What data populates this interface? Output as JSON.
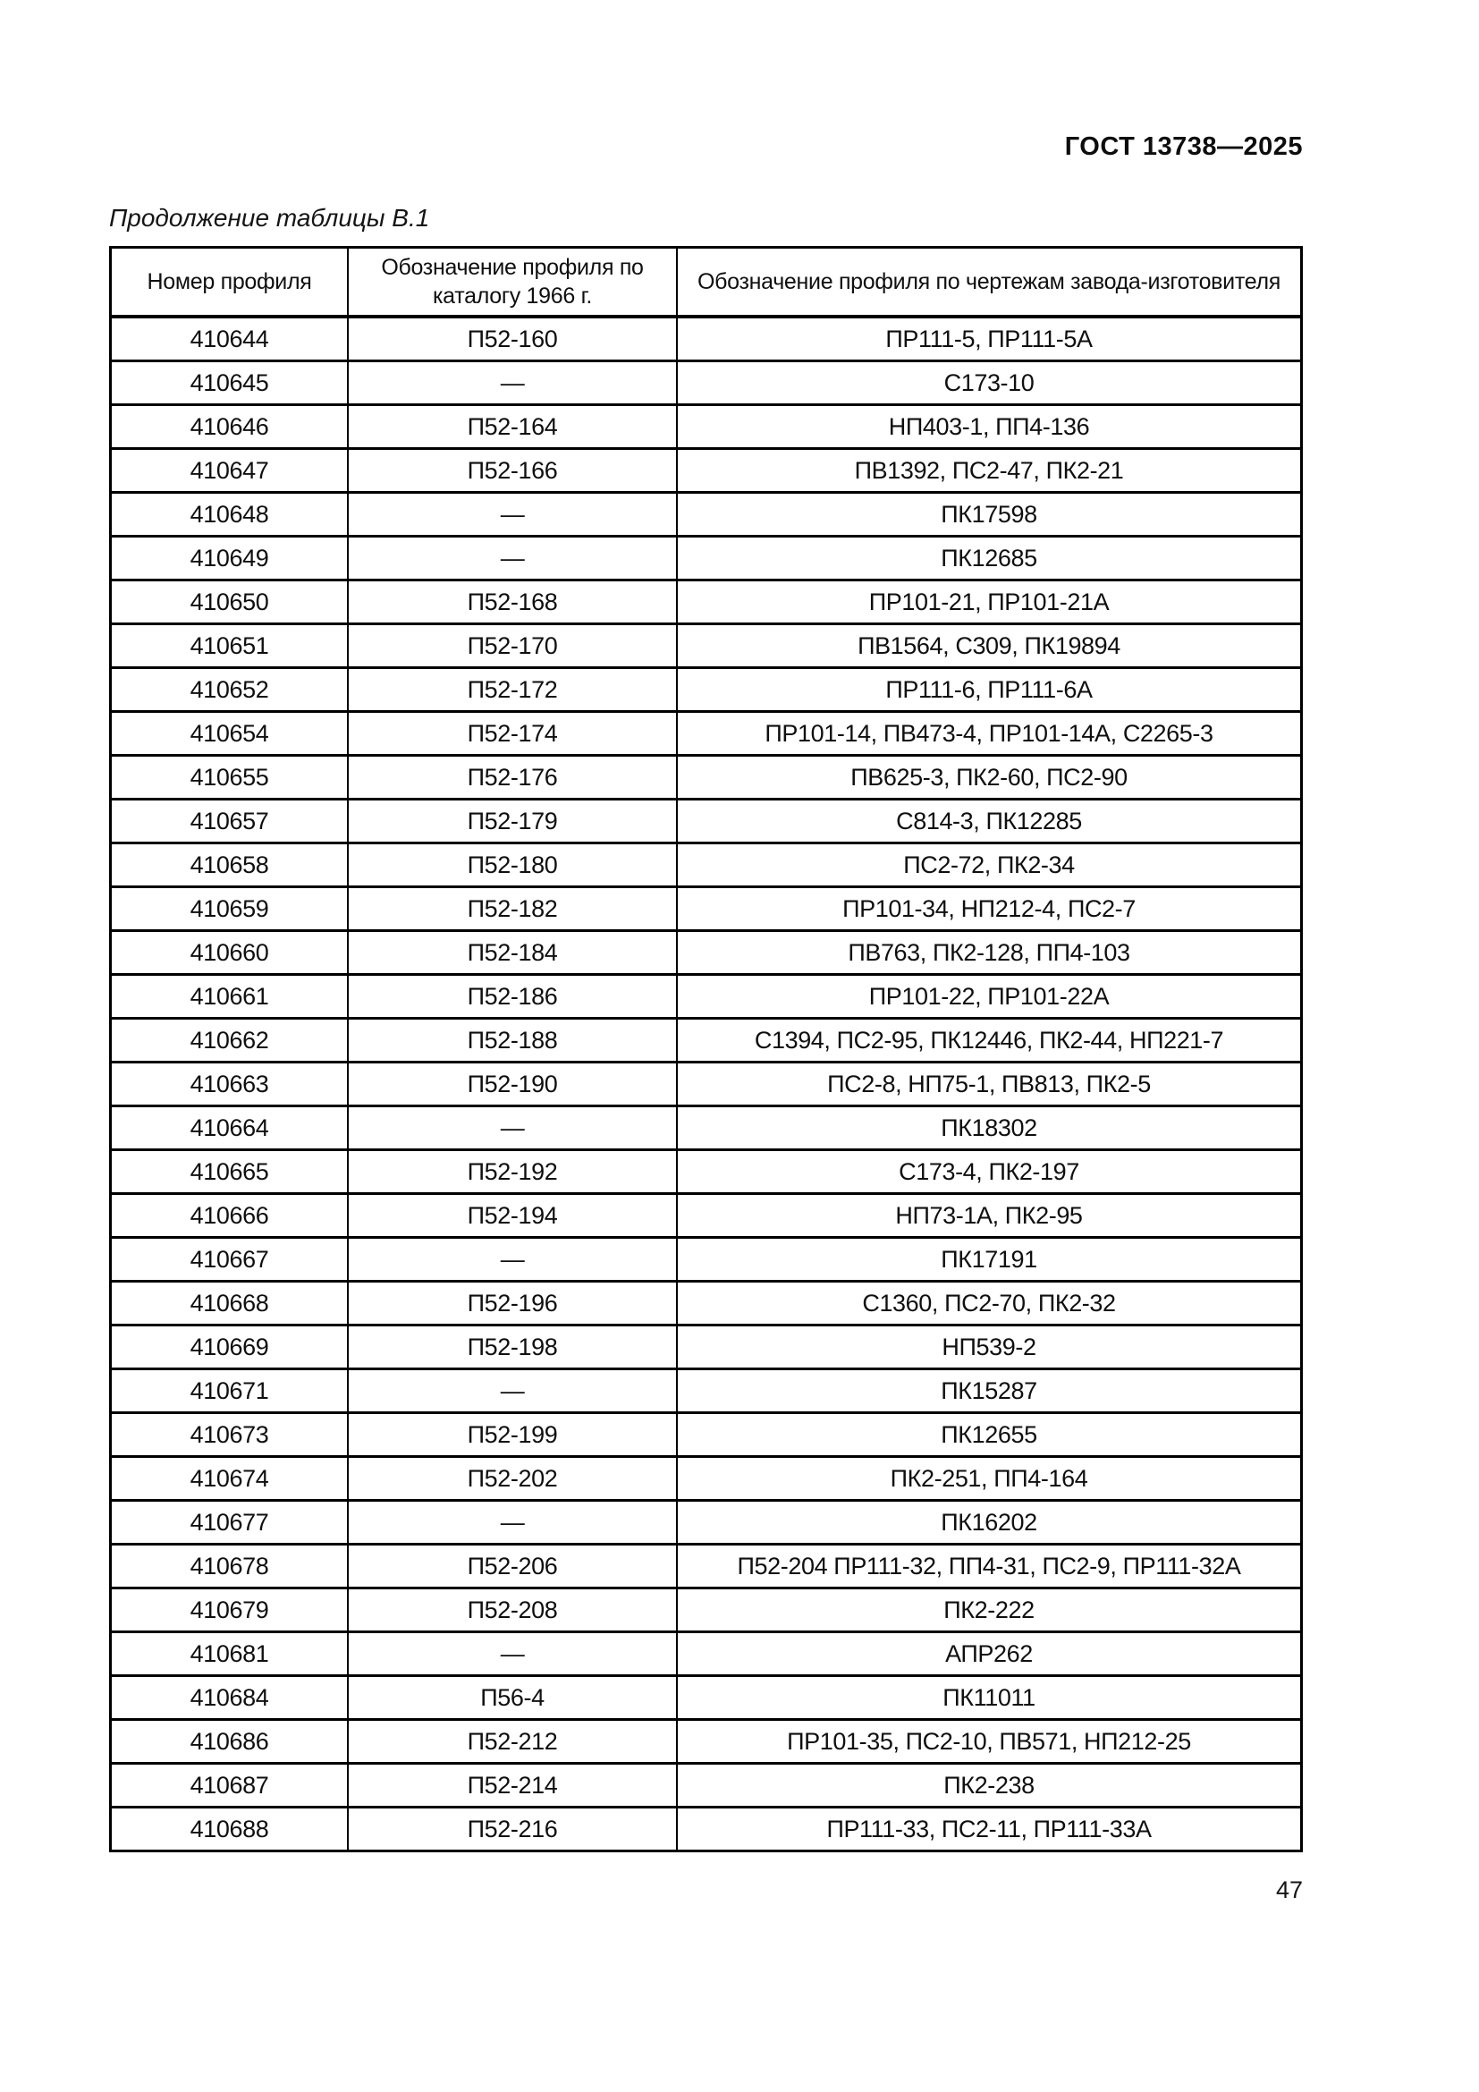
{
  "page": {
    "doc_header": "ГОСТ 13738—2025",
    "table_caption": "Продолжение таблицы В.1",
    "page_number": "47"
  },
  "table": {
    "columns": [
      {
        "label": "Номер профиля"
      },
      {
        "label": "Обозначение профиля по каталогу 1966 г."
      },
      {
        "label": "Обозначение профиля по чертежам завода-изготовителя"
      }
    ],
    "rows": [
      {
        "profile_number": "410644",
        "catalog_1966": "П52-160",
        "manufacturer": "ПР111-5, ПР111-5А"
      },
      {
        "profile_number": "410645",
        "catalog_1966": "—",
        "manufacturer": "С173-10"
      },
      {
        "profile_number": "410646",
        "catalog_1966": "П52-164",
        "manufacturer": "НП403-1, ПП4-136"
      },
      {
        "profile_number": "410647",
        "catalog_1966": "П52-166",
        "manufacturer": "ПВ1392, ПС2-47, ПК2-21"
      },
      {
        "profile_number": "410648",
        "catalog_1966": "—",
        "manufacturer": "ПК17598"
      },
      {
        "profile_number": "410649",
        "catalog_1966": "—",
        "manufacturer": "ПК12685"
      },
      {
        "profile_number": "410650",
        "catalog_1966": "П52-168",
        "manufacturer": "ПР101-21, ПР101-21А"
      },
      {
        "profile_number": "410651",
        "catalog_1966": "П52-170",
        "manufacturer": "ПВ1564, С309, ПК19894"
      },
      {
        "profile_number": "410652",
        "catalog_1966": "П52-172",
        "manufacturer": "ПР111-6, ПР111-6А"
      },
      {
        "profile_number": "410654",
        "catalog_1966": "П52-174",
        "manufacturer": "ПР101-14, ПВ473-4, ПР101-14А, С2265-3"
      },
      {
        "profile_number": "410655",
        "catalog_1966": "П52-176",
        "manufacturer": "ПВ625-3, ПК2-60, ПС2-90"
      },
      {
        "profile_number": "410657",
        "catalog_1966": "П52-179",
        "manufacturer": "С814-3, ПК12285"
      },
      {
        "profile_number": "410658",
        "catalog_1966": "П52-180",
        "manufacturer": "ПС2-72, ПК2-34"
      },
      {
        "profile_number": "410659",
        "catalog_1966": "П52-182",
        "manufacturer": "ПР101-34, НП212-4, ПС2-7"
      },
      {
        "profile_number": "410660",
        "catalog_1966": "П52-184",
        "manufacturer": "ПВ763, ПК2-128, ПП4-103"
      },
      {
        "profile_number": "410661",
        "catalog_1966": "П52-186",
        "manufacturer": "ПР101-22, ПР101-22А"
      },
      {
        "profile_number": "410662",
        "catalog_1966": "П52-188",
        "manufacturer": "С1394, ПС2-95, ПК12446, ПК2-44, НП221-7"
      },
      {
        "profile_number": "410663",
        "catalog_1966": "П52-190",
        "manufacturer": "ПС2-8, НП75-1, ПВ813, ПК2-5"
      },
      {
        "profile_number": "410664",
        "catalog_1966": "—",
        "manufacturer": "ПК18302"
      },
      {
        "profile_number": "410665",
        "catalog_1966": "П52-192",
        "manufacturer": "С173-4, ПК2-197"
      },
      {
        "profile_number": "410666",
        "catalog_1966": "П52-194",
        "manufacturer": "НП73-1А, ПК2-95"
      },
      {
        "profile_number": "410667",
        "catalog_1966": "—",
        "manufacturer": "ПК17191"
      },
      {
        "profile_number": "410668",
        "catalog_1966": "П52-196",
        "manufacturer": "С1360, ПС2-70, ПК2-32"
      },
      {
        "profile_number": "410669",
        "catalog_1966": "П52-198",
        "manufacturer": "НП539-2"
      },
      {
        "profile_number": "410671",
        "catalog_1966": "—",
        "manufacturer": "ПК15287"
      },
      {
        "profile_number": "410673",
        "catalog_1966": "П52-199",
        "manufacturer": "ПК12655"
      },
      {
        "profile_number": "410674",
        "catalog_1966": "П52-202",
        "manufacturer": "ПК2-251, ПП4-164"
      },
      {
        "profile_number": "410677",
        "catalog_1966": "—",
        "manufacturer": "ПК16202"
      },
      {
        "profile_number": "410678",
        "catalog_1966": "П52-206",
        "manufacturer": "П52-204 ПР111-32, ПП4-31, ПС2-9, ПР111-32А"
      },
      {
        "profile_number": "410679",
        "catalog_1966": "П52-208",
        "manufacturer": "ПК2-222"
      },
      {
        "profile_number": "410681",
        "catalog_1966": "—",
        "manufacturer": "АПР262"
      },
      {
        "profile_number": "410684",
        "catalog_1966": "П56-4",
        "manufacturer": "ПК11011"
      },
      {
        "profile_number": "410686",
        "catalog_1966": "П52-212",
        "manufacturer": "ПР101-35, ПС2-10, ПВ571, НП212-25"
      },
      {
        "profile_number": "410687",
        "catalog_1966": "П52-214",
        "manufacturer": "ПК2-238"
      },
      {
        "profile_number": "410688",
        "catalog_1966": "П52-216",
        "manufacturer": "ПР111-33, ПС2-11, ПР111-33А"
      }
    ]
  }
}
